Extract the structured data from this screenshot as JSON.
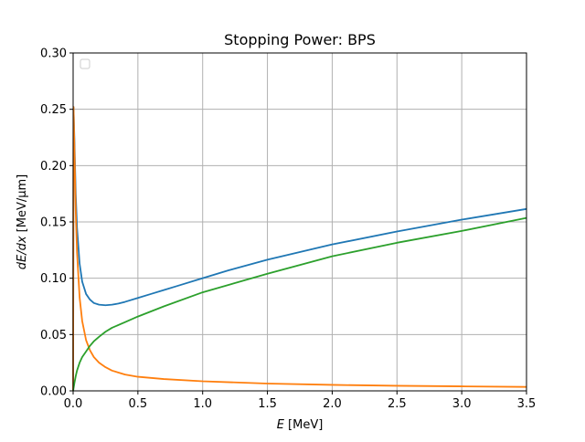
{
  "chart_data": {
    "type": "line",
    "title": "Stopping Power: BPS",
    "xlabel": {
      "italic": "E",
      "rest": " [MeV]"
    },
    "ylabel": {
      "italic": "dE/dx",
      "rest": " [MeV/μm]"
    },
    "xlim": [
      0,
      3.5
    ],
    "ylim": [
      0,
      0.3
    ],
    "xticks": [
      0,
      0.5,
      1,
      1.5,
      2,
      2.5,
      3,
      3.5
    ],
    "xtick_labels": [
      "0.0",
      "0.5",
      "1.0",
      "1.5",
      "2.0",
      "2.5",
      "3.0",
      "3.5"
    ],
    "yticks": [
      0,
      0.05,
      0.1,
      0.15,
      0.2,
      0.25,
      0.3
    ],
    "ytick_labels": [
      "0.00",
      "0.05",
      "0.10",
      "0.15",
      "0.20",
      "0.25",
      "0.30"
    ],
    "grid": true,
    "legend": {
      "placement": "top-left",
      "entries": []
    },
    "series": [
      {
        "color": "#1f77b4",
        "x": [
          0,
          0.003,
          0.01,
          0.02,
          0.03,
          0.05,
          0.07,
          0.1,
          0.13,
          0.16,
          0.2,
          0.25,
          0.3,
          0.35,
          0.4,
          0.5,
          0.6,
          0.7,
          0.8,
          1.0,
          1.2,
          1.5,
          2.0,
          2.5,
          3.0,
          3.5
        ],
        "y": [
          0.0,
          0.252,
          0.222,
          0.175,
          0.145,
          0.113,
          0.097,
          0.086,
          0.081,
          0.078,
          0.0765,
          0.076,
          0.0765,
          0.0775,
          0.079,
          0.0825,
          0.086,
          0.0895,
          0.093,
          0.1,
          0.107,
          0.1165,
          0.13,
          0.1415,
          0.152,
          0.1615
        ]
      },
      {
        "color": "#ff7f0e",
        "x": [
          0,
          0.003,
          0.01,
          0.02,
          0.03,
          0.05,
          0.07,
          0.1,
          0.13,
          0.16,
          0.2,
          0.25,
          0.3,
          0.4,
          0.5,
          0.7,
          1.0,
          1.5,
          2.0,
          2.5,
          3.0,
          3.5
        ],
        "y": [
          0.0,
          0.252,
          0.215,
          0.16,
          0.123,
          0.083,
          0.062,
          0.045,
          0.036,
          0.03,
          0.025,
          0.021,
          0.018,
          0.0145,
          0.0125,
          0.0105,
          0.0085,
          0.0065,
          0.0053,
          0.0045,
          0.004,
          0.0035
        ]
      },
      {
        "color": "#2ca02c",
        "x": [
          0,
          0.01,
          0.02,
          0.03,
          0.05,
          0.07,
          0.1,
          0.13,
          0.16,
          0.2,
          0.25,
          0.3,
          0.4,
          0.5,
          0.7,
          1.0,
          1.5,
          2.0,
          2.5,
          3.0,
          3.5
        ],
        "y": [
          0.0,
          0.007,
          0.013,
          0.018,
          0.025,
          0.03,
          0.035,
          0.04,
          0.044,
          0.048,
          0.0525,
          0.056,
          0.061,
          0.066,
          0.075,
          0.0875,
          0.104,
          0.1195,
          0.1315,
          0.142,
          0.1535
        ]
      }
    ]
  }
}
